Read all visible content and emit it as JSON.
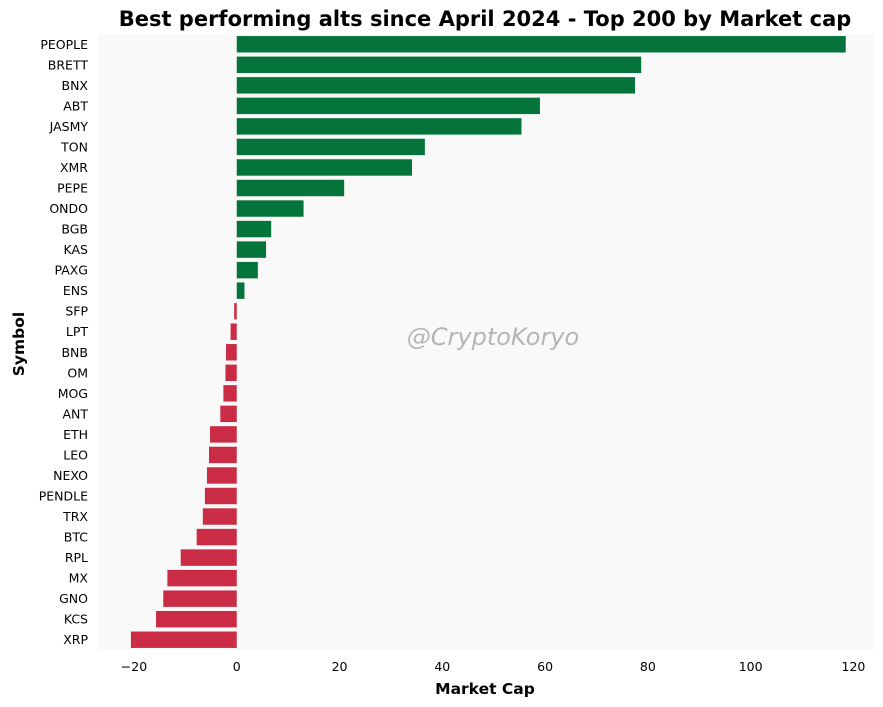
{
  "chart_data": {
    "type": "bar",
    "orientation": "horizontal",
    "title": "Best performing alts since April 2024 - Top 200 by Market cap",
    "xlabel": "Market Cap",
    "ylabel": "Symbol",
    "watermark": "@CryptoKoryo",
    "xlim": [
      -27,
      124
    ],
    "xticks": [
      -20,
      0,
      20,
      40,
      60,
      80,
      100,
      120
    ],
    "xtick_labels": [
      "−20",
      "0",
      "20",
      "40",
      "60",
      "80",
      "100",
      "120"
    ],
    "grid": false,
    "categories": [
      "PEOPLE",
      "BRETT",
      "BNX",
      "ABT",
      "JASMY",
      "TON",
      "XMR",
      "PEPE",
      "ONDO",
      "BGB",
      "KAS",
      "PAXG",
      "ENS",
      "SFP",
      "LPT",
      "BNB",
      "OM",
      "MOG",
      "ANT",
      "ETH",
      "LEO",
      "NEXO",
      "PENDLE",
      "TRX",
      "BTC",
      "RPL",
      "MX",
      "GNO",
      "KCS",
      "XRP"
    ],
    "values": [
      118.5,
      78.7,
      77.5,
      59.0,
      55.4,
      36.6,
      34.1,
      20.9,
      13.0,
      6.7,
      5.7,
      4.1,
      1.5,
      -0.5,
      -1.2,
      -2.1,
      -2.2,
      -2.6,
      -3.2,
      -5.2,
      -5.4,
      -5.8,
      -6.2,
      -6.6,
      -7.8,
      -10.9,
      -13.5,
      -14.3,
      -15.7,
      -20.6
    ],
    "colors": {
      "positive": "#04743b",
      "negative": "#c92c44",
      "plot_background": "#f9f9f9"
    }
  }
}
